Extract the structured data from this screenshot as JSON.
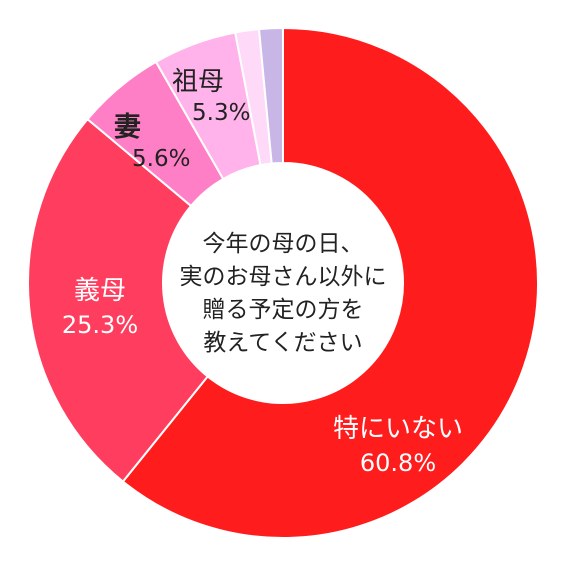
{
  "chart_data": {
    "type": "pie",
    "donut": true,
    "categories": [
      "特にいない",
      "義母",
      "妻",
      "祖母",
      "",
      ""
    ],
    "values": [
      60.8,
      25.3,
      5.6,
      5.3,
      1.5,
      1.5
    ],
    "value_labels": [
      "60.8%",
      "25.3%",
      "5.6%",
      "5.3%",
      "",
      ""
    ],
    "colors": [
      "#ff1c1c",
      "#ff3d5e",
      "#ff7fc6",
      "#ffb3ea",
      "#ffd9f8",
      "#c8b6e6"
    ],
    "center_text": [
      "今年の母の日、",
      "実のお母さん以外に",
      "贈る予定の方を",
      "教えてください"
    ],
    "legend": "none"
  }
}
